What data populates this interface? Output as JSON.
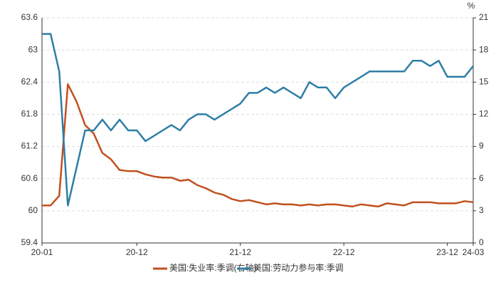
{
  "chart_data": {
    "type": "line",
    "categories": [
      "20-01",
      null,
      null,
      null,
      null,
      null,
      null,
      null,
      null,
      null,
      null,
      "20-12",
      null,
      null,
      null,
      null,
      null,
      null,
      null,
      null,
      null,
      null,
      null,
      "21-12",
      null,
      null,
      null,
      null,
      null,
      null,
      null,
      null,
      null,
      null,
      null,
      "22-12",
      null,
      null,
      null,
      null,
      null,
      null,
      null,
      null,
      null,
      null,
      null,
      "23-12",
      null,
      null,
      "24-03"
    ],
    "series": [
      {
        "name": "美国:失业率:季调(右轴)",
        "color": "#c0501f",
        "axis": "y2",
        "values": [
          3.5,
          3.5,
          4.4,
          14.8,
          13.2,
          11.0,
          10.2,
          8.4,
          7.8,
          6.8,
          6.7,
          6.7,
          6.4,
          6.2,
          6.1,
          6.1,
          5.8,
          5.9,
          5.4,
          5.1,
          4.7,
          4.5,
          4.1,
          3.9,
          4.0,
          3.8,
          3.6,
          3.7,
          3.6,
          3.6,
          3.5,
          3.6,
          3.5,
          3.6,
          3.6,
          3.5,
          3.4,
          3.6,
          3.5,
          3.4,
          3.7,
          3.6,
          3.5,
          3.8,
          3.8,
          3.8,
          3.7,
          3.7,
          3.7,
          3.9,
          3.8
        ]
      },
      {
        "name": "美国:劳动力参与率:季调",
        "color": "#2e7ea6",
        "values": [
          63.3,
          63.3,
          62.6,
          60.1,
          60.8,
          61.5,
          61.5,
          61.7,
          61.5,
          61.7,
          61.5,
          61.5,
          61.3,
          61.4,
          61.5,
          61.6,
          61.5,
          61.7,
          61.8,
          61.8,
          61.7,
          61.8,
          61.9,
          62.0,
          62.2,
          62.2,
          62.3,
          62.2,
          62.3,
          62.2,
          62.1,
          62.4,
          62.3,
          62.3,
          62.1,
          62.3,
          62.4,
          62.5,
          62.6,
          62.6,
          62.6,
          62.6,
          62.6,
          62.8,
          62.8,
          62.7,
          62.8,
          62.5,
          62.5,
          62.5,
          62.7
        ]
      }
    ],
    "ylim": [
      59.4,
      63.6
    ],
    "yticks": [
      59.4,
      60,
      60.6,
      61.2,
      61.8,
      62.4,
      63,
      63.6
    ],
    "y2lim": [
      0,
      21
    ],
    "y2ticks": [
      0,
      3,
      6,
      9,
      12,
      15,
      18,
      21
    ],
    "y2_unit": "%",
    "grid": true
  }
}
